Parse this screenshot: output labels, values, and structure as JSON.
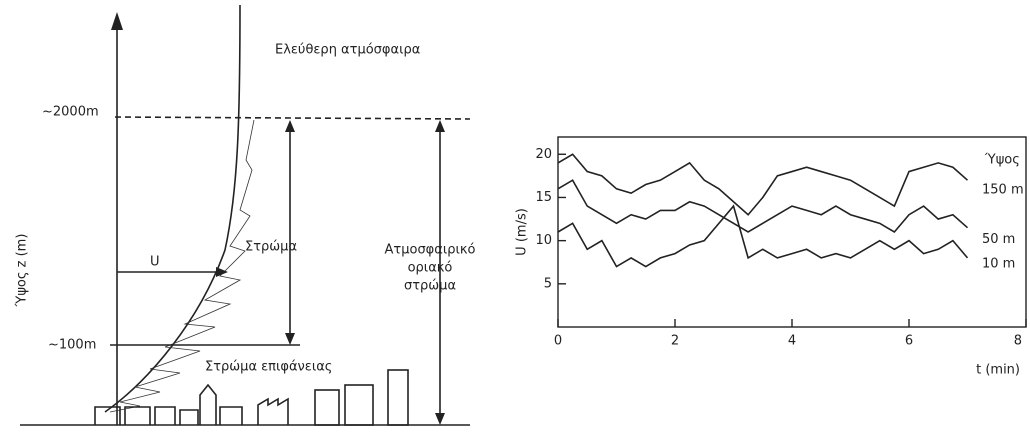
{
  "diagram": {
    "free_atmosphere": "Ελεύθερη ατμόσφαιρα",
    "top_height": "~2000m",
    "surface_height": "~100m",
    "y_axis_label": "Ύψος z (m)",
    "wind_label": "U",
    "layer_label": "Στρώμα",
    "boundary_layer_label": [
      "Ατμοσφαιρικό",
      "οριακό",
      "στρώμα"
    ],
    "surface_layer_label": "Στρώμα επιφάνειας"
  },
  "chart_data": {
    "type": "line",
    "x_label": "t (min)",
    "y_label": "U (m/s)",
    "legend_title": "Ύψος",
    "x": [
      0,
      0.25,
      0.5,
      0.75,
      1,
      1.25,
      1.5,
      1.75,
      2,
      2.25,
      2.5,
      2.75,
      3,
      3.25,
      3.5,
      3.75,
      4,
      4.25,
      4.5,
      4.75,
      5,
      5.25,
      5.5,
      5.75,
      6,
      6.25,
      6.5,
      6.75,
      7
    ],
    "series": [
      {
        "name": "150 m",
        "color": "#222222",
        "values": [
          19,
          20,
          18,
          17.5,
          16,
          15.5,
          16.5,
          17,
          18,
          19,
          17,
          16,
          14.5,
          13,
          15,
          17.5,
          18,
          18.5,
          18,
          17.5,
          17,
          16,
          15,
          14,
          18,
          18.5,
          19,
          18.5,
          17
        ]
      },
      {
        "name": "50 m",
        "color": "#222222",
        "values": [
          16,
          17,
          14,
          13,
          12,
          13,
          12.5,
          13.5,
          13.5,
          14.5,
          14,
          13,
          12,
          11,
          12,
          13,
          14,
          13.5,
          13,
          14,
          13,
          12.5,
          12,
          11,
          13,
          14,
          12.5,
          13,
          11.5
        ]
      },
      {
        "name": "10 m",
        "color": "#222222",
        "values": [
          11,
          12,
          9,
          10,
          7,
          8,
          7,
          8,
          8.5,
          9.5,
          10,
          12,
          14,
          8,
          9,
          8,
          8.5,
          9,
          8,
          8.5,
          8,
          9,
          10,
          9,
          10,
          8.5,
          9,
          10,
          8
        ]
      }
    ],
    "xlim": [
      0,
      8
    ],
    "xticks": [
      0,
      2,
      4,
      6,
      8
    ],
    "ylim": [
      0,
      22
    ],
    "yticks": [
      0,
      5,
      10,
      15,
      20
    ]
  }
}
